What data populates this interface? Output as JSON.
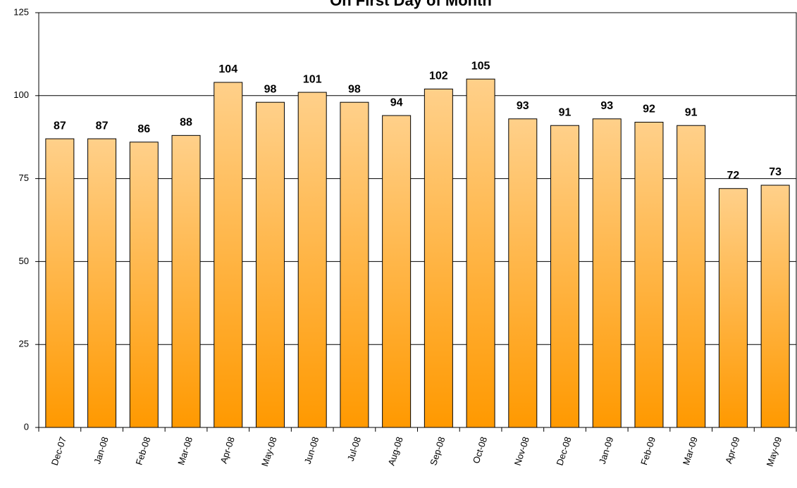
{
  "chart_data": {
    "type": "bar",
    "title": "On First Day of Month",
    "categories": [
      "Dec-07",
      "Jan-08",
      "Feb-08",
      "Mar-08",
      "Apr-08",
      "May-08",
      "Jun-08",
      "Jul-08",
      "Aug-08",
      "Sep-08",
      "Oct-08",
      "Nov-08",
      "Dec-08",
      "Jan-09",
      "Feb-09",
      "Mar-09",
      "Apr-09",
      "May-09"
    ],
    "values": [
      87,
      87,
      86,
      88,
      104,
      98,
      101,
      98,
      94,
      102,
      105,
      93,
      91,
      93,
      92,
      91,
      72,
      73
    ],
    "color": "#ff9900",
    "color_top": "#ffd08a",
    "ylim": [
      0,
      125
    ],
    "yticks": [
      0,
      25,
      50,
      75,
      100,
      125
    ],
    "grid": true
  }
}
